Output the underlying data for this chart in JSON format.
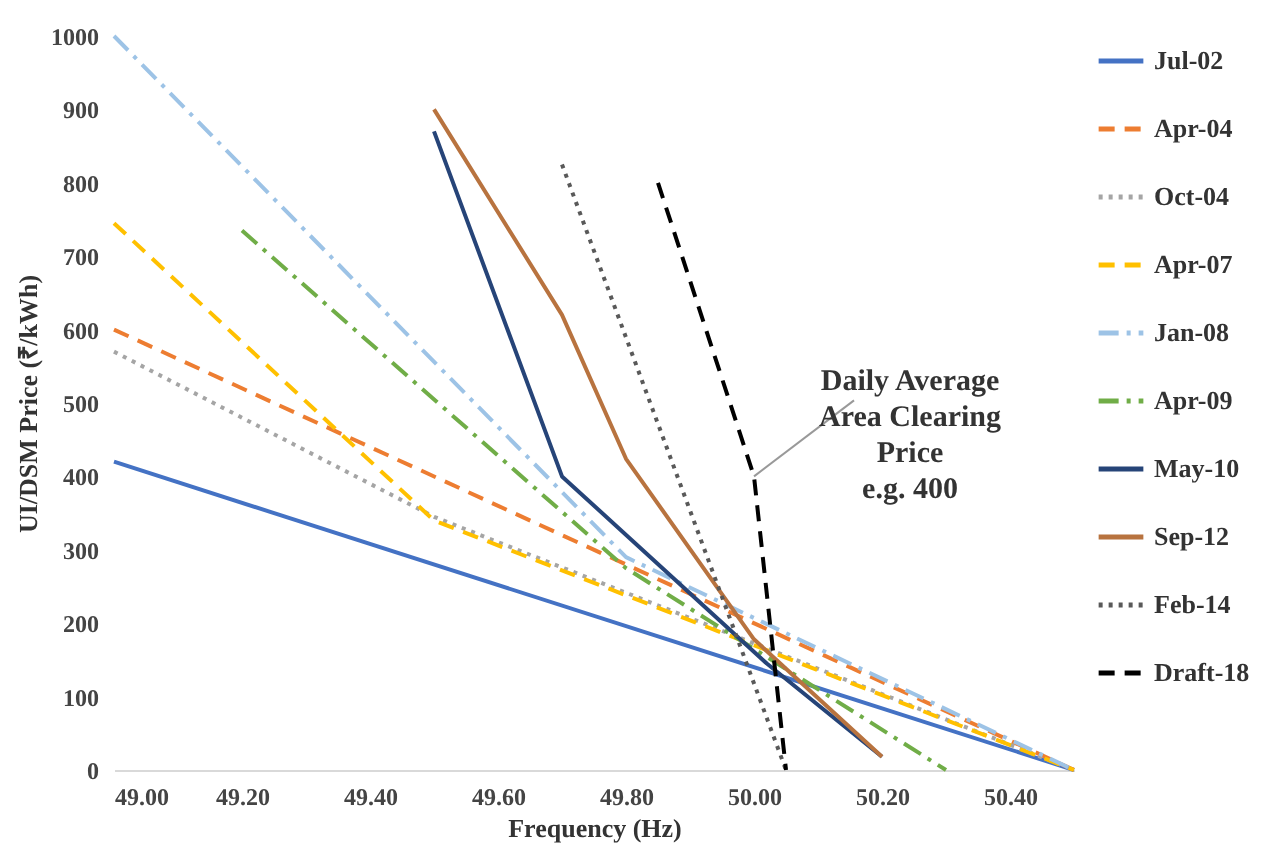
{
  "chart_data": {
    "type": "line",
    "xlabel": "Frequency (Hz)",
    "ylabel": "UI/DSM Price (₹/kWh)",
    "xlim": [
      49.0,
      50.5
    ],
    "ylim": [
      0,
      1000
    ],
    "xticks": [
      {
        "value": 49.0,
        "label": "49.00"
      },
      {
        "value": 49.2,
        "label": "49.20"
      },
      {
        "value": 49.4,
        "label": "49.40"
      },
      {
        "value": 49.6,
        "label": "49.60"
      },
      {
        "value": 49.8,
        "label": "49.80"
      },
      {
        "value": 50.0,
        "label": "50.00"
      },
      {
        "value": 50.2,
        "label": "50.20"
      },
      {
        "value": 50.4,
        "label": "50.40"
      }
    ],
    "yticks": [
      0,
      100,
      200,
      300,
      400,
      500,
      600,
      700,
      800,
      900,
      1000
    ],
    "grid": false,
    "legend": "right",
    "marker": "none",
    "series": [
      {
        "name": "Jul-02",
        "color": "#4472c4",
        "line_style": "solid",
        "x": [
          49.0,
          50.5
        ],
        "values": [
          420,
          0
        ]
      },
      {
        "name": "Apr-04",
        "color": "#ed7d31",
        "line_style": "dashed",
        "x": [
          49.0,
          50.5
        ],
        "values": [
          600,
          0
        ]
      },
      {
        "name": "Oct-04",
        "color": "#a5a5a5",
        "line_style": "dotted",
        "x": [
          49.0,
          49.5,
          50.5
        ],
        "values": [
          570,
          345,
          0
        ]
      },
      {
        "name": "Apr-07",
        "color": "#ffc000",
        "line_style": "dashed",
        "x": [
          49.0,
          49.5,
          50.5
        ],
        "values": [
          745,
          340,
          0
        ]
      },
      {
        "name": "Jan-08",
        "color": "#9dc3e6",
        "line_style": "dashdot",
        "x": [
          49.0,
          49.8,
          50.5
        ],
        "values": [
          1000,
          290,
          0
        ]
      },
      {
        "name": "Apr-09",
        "color": "#70ad47",
        "line_style": "dashdot",
        "x": [
          49.2,
          49.8,
          50.3
        ],
        "values": [
          735,
          275,
          0
        ]
      },
      {
        "name": "May-10",
        "color": "#264478",
        "line_style": "solid",
        "x": [
          49.5,
          49.7,
          50.02,
          50.2
        ],
        "values": [
          870,
          400,
          145,
          18
        ]
      },
      {
        "name": "Sep-12",
        "color": "#b8733f",
        "line_style": "solid",
        "x": [
          49.5,
          49.7,
          49.8,
          50.0,
          50.2
        ],
        "values": [
          900,
          620,
          424,
          178,
          18
        ]
      },
      {
        "name": "Feb-14",
        "color": "#595959",
        "line_style": "dotted",
        "x": [
          49.7,
          50.05
        ],
        "values": [
          825,
          0
        ]
      },
      {
        "name": "Draft-18",
        "color": "#000000",
        "line_style": "dashed",
        "x": [
          49.85,
          50.0,
          50.05
        ],
        "values": [
          800,
          400,
          0
        ]
      }
    ],
    "annotations": [
      {
        "text": "Daily Average\nArea Clearing\nPrice\ne.g. 400",
        "x": 50.0,
        "y": 400
      }
    ]
  }
}
